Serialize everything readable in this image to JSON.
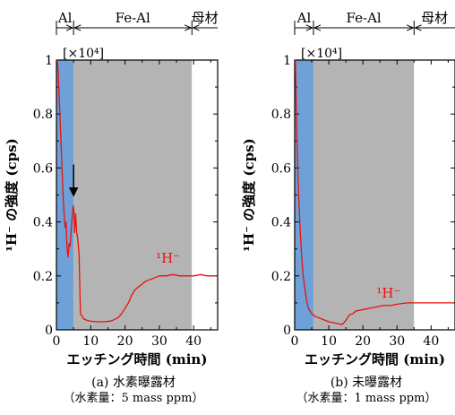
{
  "charts": [
    {
      "caption_title": "(a) 水素曝露材",
      "caption_sub": "（水素量：5 mass ppm）"
    },
    {
      "caption_title": "(b) 未曝露材",
      "caption_sub": "（水素量：1 mass ppm）"
    }
  ],
  "chart_data": [
    {
      "type": "line",
      "title": "(a) 水素曝露材",
      "xlabel": "エッチング時間 (min)",
      "ylabel": "¹H⁻ の強度 (cps)",
      "y_multiplier": "[×10⁴]",
      "xlim": [
        0,
        47
      ],
      "ylim": [
        0,
        1
      ],
      "xticks": [
        0,
        10,
        20,
        30,
        40
      ],
      "yticks": [
        0,
        0.2,
        0.4,
        0.6,
        0.8,
        1
      ],
      "regions": [
        {
          "label": "Al",
          "x": [
            0,
            5
          ],
          "color": "#6fa0d8"
        },
        {
          "label": "Fe-Al",
          "x": [
            5,
            39.5
          ],
          "color": "#b4b4b4"
        },
        {
          "label": "母材",
          "x": [
            39.5,
            47
          ],
          "color": "#ffffff"
        }
      ],
      "annotation": {
        "type": "arrow",
        "x": 5.0,
        "y": 0.48
      },
      "series": [
        {
          "label": "¹H⁻",
          "label_at": [
            29,
            0.25
          ],
          "color": "#e8120c",
          "x": [
            0.2,
            0.5,
            1,
            1.5,
            2,
            2.5,
            2.8,
            3.1,
            3.4,
            3.7,
            4.0,
            4.3,
            4.6,
            4.9,
            5.1,
            5.3,
            5.6,
            5.9,
            6.2,
            6.6,
            7,
            8,
            9,
            10,
            12,
            14,
            16,
            18,
            19,
            20,
            21,
            22,
            23,
            24,
            25,
            26,
            27,
            28,
            30,
            32,
            34,
            36,
            38,
            40,
            42,
            44,
            46.5
          ],
          "y": [
            1.0,
            0.96,
            0.8,
            0.64,
            0.48,
            0.38,
            0.4,
            0.3,
            0.27,
            0.32,
            0.31,
            0.37,
            0.42,
            0.46,
            0.44,
            0.36,
            0.43,
            0.36,
            0.34,
            0.28,
            0.06,
            0.04,
            0.035,
            0.032,
            0.03,
            0.03,
            0.033,
            0.045,
            0.06,
            0.08,
            0.1,
            0.13,
            0.15,
            0.16,
            0.17,
            0.18,
            0.185,
            0.19,
            0.2,
            0.2,
            0.205,
            0.2,
            0.2,
            0.2,
            0.205,
            0.2,
            0.2
          ]
        }
      ]
    },
    {
      "type": "line",
      "title": "(b) 未曝露材",
      "xlabel": "エッチング時間 (min)",
      "ylabel": "¹H⁻ の強度 (cps)",
      "y_multiplier": "[×10⁴]",
      "xlim": [
        0,
        47
      ],
      "ylim": [
        0,
        1
      ],
      "xticks": [
        0,
        10,
        20,
        30,
        40
      ],
      "yticks": [
        0,
        0.2,
        0.4,
        0.6,
        0.8,
        1
      ],
      "regions": [
        {
          "label": "Al",
          "x": [
            0,
            5.5
          ],
          "color": "#6fa0d8"
        },
        {
          "label": "Fe-Al",
          "x": [
            5.5,
            35
          ],
          "color": "#b4b4b4"
        },
        {
          "label": "母材",
          "x": [
            35,
            47
          ],
          "color": "#ffffff"
        }
      ],
      "series": [
        {
          "label": "¹H⁻",
          "label_at": [
            24,
            0.12
          ],
          "color": "#e8120c",
          "x": [
            0.2,
            0.5,
            1,
            1.5,
            2,
            2.5,
            3,
            3.5,
            4,
            5,
            6,
            7,
            8,
            10,
            12,
            13,
            14,
            15,
            16,
            17,
            18,
            20,
            22,
            24,
            26,
            28,
            30,
            33,
            36,
            39,
            42,
            45,
            46.5
          ],
          "y": [
            1.0,
            0.8,
            0.55,
            0.4,
            0.28,
            0.2,
            0.15,
            0.11,
            0.08,
            0.06,
            0.05,
            0.045,
            0.04,
            0.03,
            0.025,
            0.022,
            0.02,
            0.035,
            0.055,
            0.06,
            0.07,
            0.075,
            0.08,
            0.085,
            0.09,
            0.09,
            0.095,
            0.1,
            0.1,
            0.1,
            0.1,
            0.1,
            0.1
          ]
        }
      ]
    }
  ]
}
